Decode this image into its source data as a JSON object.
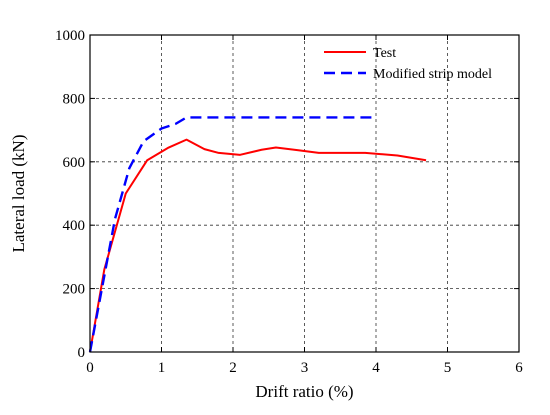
{
  "chart_data": {
    "type": "line",
    "xlabel": "Drift ratio (%)",
    "ylabel": "Lateral load (kN)",
    "xlim": [
      0,
      6
    ],
    "ylim": [
      0,
      1000
    ],
    "xticks": [
      0,
      1,
      2,
      3,
      4,
      5,
      6
    ],
    "yticks": [
      0,
      200,
      400,
      600,
      800,
      1000
    ],
    "xtick_labels": [
      "0",
      "1",
      "2",
      "3",
      "4",
      "5",
      "6"
    ],
    "ytick_labels": [
      "0",
      "200",
      "400",
      "600",
      "800",
      "1000"
    ],
    "grid": true,
    "grid_style": "dashed",
    "legend_position": "top-right",
    "series": [
      {
        "name": "Test",
        "color": "#ff0000",
        "line_style": "solid",
        "x": [
          0,
          0.2,
          0.5,
          0.8,
          1.1,
          1.35,
          1.6,
          1.8,
          2.1,
          2.4,
          2.6,
          2.9,
          3.2,
          3.5,
          3.85,
          4.3,
          4.7
        ],
        "y": [
          0,
          260,
          500,
          605,
          645,
          670,
          640,
          628,
          622,
          638,
          645,
          637,
          628,
          628,
          628,
          620,
          605
        ]
      },
      {
        "name": "Modified strip model",
        "color": "#0000ff",
        "line_style": "dashed",
        "x": [
          0,
          0.15,
          0.35,
          0.55,
          0.75,
          1.0,
          1.2,
          1.35,
          1.6,
          2.0,
          3.0,
          4.0
        ],
        "y": [
          0,
          180,
          420,
          580,
          665,
          705,
          720,
          740,
          740,
          740,
          740,
          740
        ]
      }
    ]
  }
}
